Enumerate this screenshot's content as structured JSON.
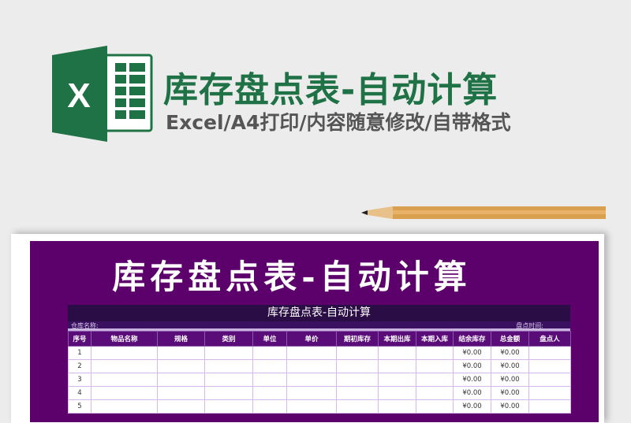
{
  "banner": {
    "title": "库存盘点表-自动计算",
    "subtitle": "Excel/A4打印/内容随意修改/自带格式",
    "logo_letter": "X",
    "brand_color": "#1f7245"
  },
  "preview": {
    "big_title": "库存盘点表-自动计算",
    "sheet_title": "库存盘点表-自动计算",
    "warehouse_label": "仓库名称:",
    "date_label": "盘点时间:",
    "columns": [
      "序号",
      "物品名称",
      "规格",
      "类别",
      "单位",
      "单价",
      "期初库存",
      "本期出库",
      "本期入库",
      "结余库存",
      "总金额",
      "盘点人"
    ],
    "rows": [
      {
        "no": "1",
        "balance": "¥0.00",
        "total": "¥0.00"
      },
      {
        "no": "2",
        "balance": "¥0.00",
        "total": "¥0.00"
      },
      {
        "no": "3",
        "balance": "¥0.00",
        "total": "¥0.00"
      },
      {
        "no": "4",
        "balance": "¥0.00",
        "total": "¥0.00"
      },
      {
        "no": "5",
        "balance": "¥0.00",
        "total": "¥0.00"
      }
    ],
    "panel_color": "#5c006b"
  }
}
